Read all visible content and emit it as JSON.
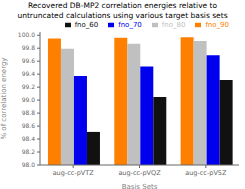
{
  "chart_data": {
    "type": "bar",
    "title": "Recovered DB-MP2 correlation energies relative to\nuntruncated calculations using various target basis sets",
    "xlabel": "Basis Sets",
    "ylabel": "% of correlation energy",
    "categories": [
      "aug-cc-pVTZ",
      "aug-cc-pVQZ",
      "aug-cc-pV5Z"
    ],
    "series": [
      {
        "name": "fno_90",
        "color": "#FF8000",
        "values": [
          99.95,
          99.96,
          99.97
        ]
      },
      {
        "name": "fno_80",
        "color": "#C0C0C0",
        "values": [
          99.79,
          99.87,
          99.91
        ]
      },
      {
        "name": "fno_70",
        "color": "#0000EE",
        "values": [
          99.37,
          99.52,
          99.69
        ]
      },
      {
        "name": "fno_60",
        "color": "#111111",
        "values": [
          98.51,
          99.05,
          99.31
        ]
      }
    ],
    "ylim": [
      98.0,
      100.05
    ],
    "yticks": [
      {
        "value": 98.0,
        "label": "98.0"
      },
      98.2,
      98.4,
      98.6,
      98.8,
      {
        "value": 99.0,
        "label": "99.0"
      },
      99.2,
      99.4,
      99.6,
      99.8,
      {
        "value": 100.0,
        "label": "100.0"
      }
    ],
    "grid": false,
    "legend": "upper right"
  }
}
